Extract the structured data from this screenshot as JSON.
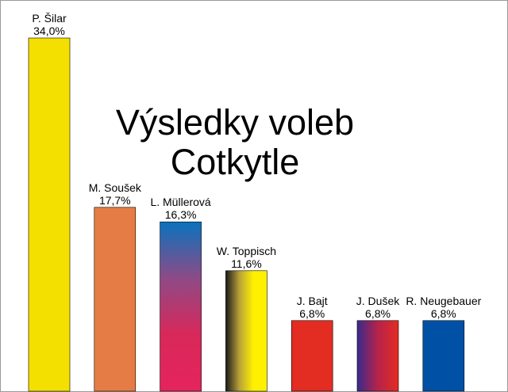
{
  "chart_data": {
    "type": "bar",
    "title": "Výsledky voleb",
    "subtitle": "Cotkytle",
    "xlabel": "",
    "ylabel": "",
    "ylim": [
      0,
      34.0
    ],
    "grid": false,
    "legend": "none",
    "categories": [
      "P. Šilar",
      "M. Soušek",
      "L. Müllerová",
      "W. Toppisch",
      "J. Bajt",
      "J. Dušek",
      "R. Neugebauer"
    ],
    "values": [
      34.0,
      17.7,
      16.3,
      11.6,
      6.8,
      6.8,
      6.8
    ],
    "value_labels": [
      "34,0%",
      "17,7%",
      "16,3%",
      "11,6%",
      "6,8%",
      "6,8%",
      "6,8%"
    ],
    "bar_fills": [
      {
        "type": "solid",
        "colors": [
          "#f4e000"
        ]
      },
      {
        "type": "solid",
        "colors": [
          "#e57c45"
        ]
      },
      {
        "type": "vertical-gradient",
        "colors": [
          "#0a72bd",
          "#8e4a86",
          "#d8285a",
          "#e5245c"
        ]
      },
      {
        "type": "horizontal-gradient",
        "colors": [
          "#1a1a1a",
          "#b9a23a",
          "#fff000",
          "#fff000"
        ]
      },
      {
        "type": "solid",
        "colors": [
          "#e32c22"
        ]
      },
      {
        "type": "horizontal-gradient",
        "colors": [
          "#3a2a8c",
          "#b5234a",
          "#e52b22"
        ]
      },
      {
        "type": "solid",
        "colors": [
          "#0051a6"
        ]
      }
    ]
  }
}
